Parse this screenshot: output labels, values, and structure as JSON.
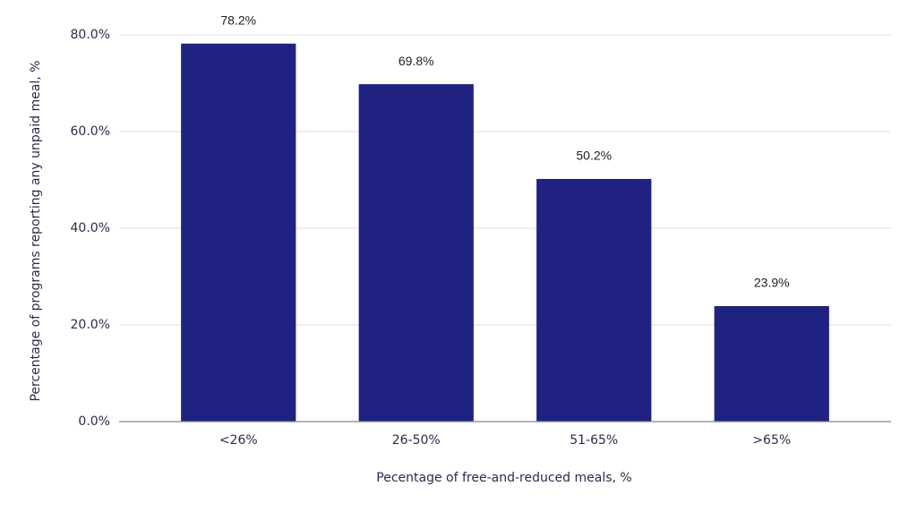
{
  "chart_data": {
    "type": "bar",
    "categories": [
      "<26%",
      "26-50%",
      "51-65%",
      ">65%"
    ],
    "values": [
      78.2,
      69.8,
      50.2,
      23.9
    ],
    "value_labels": [
      "78.2%",
      "69.8%",
      "50.2%",
      "23.9%"
    ],
    "color": "#1f2280",
    "ylim": [
      0,
      80
    ],
    "yticks": [
      {
        "value": 0,
        "label": "0.0%"
      },
      {
        "value": 20,
        "label": "20.0%"
      },
      {
        "value": 40,
        "label": "40.0%"
      },
      {
        "value": 60,
        "label": "60.0%"
      },
      {
        "value": 80,
        "label": "80.0%"
      }
    ],
    "grid": true,
    "x_label": "Pecentage of free-and-reduced meals, %",
    "y_label": "Percentage of programs reporting any unpaid meal, %"
  }
}
